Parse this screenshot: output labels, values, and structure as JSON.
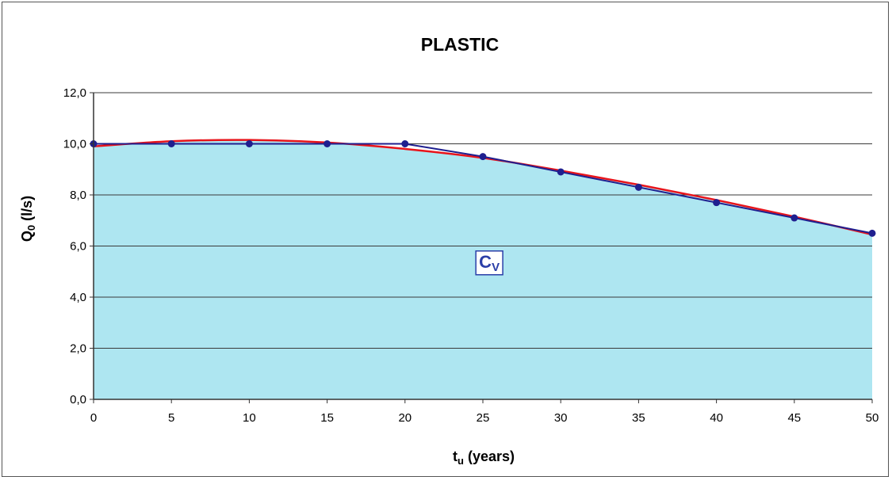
{
  "chart_data": {
    "type": "area",
    "title": "PLASTIC",
    "xlabel": {
      "main": "t",
      "sub": "u",
      "suffix": " (years)"
    },
    "ylabel": {
      "main": "Q",
      "sub": "0",
      "suffix": " (l/s)"
    },
    "xlim": [
      0,
      50
    ],
    "ylim": [
      0,
      12
    ],
    "xticks": [
      0,
      5,
      10,
      15,
      20,
      25,
      30,
      35,
      40,
      45,
      50
    ],
    "xtick_labels": [
      "0",
      "5",
      "10",
      "15",
      "20",
      "25",
      "30",
      "35",
      "40",
      "45",
      "50"
    ],
    "yticks": [
      0,
      2,
      4,
      6,
      8,
      10,
      12
    ],
    "ytick_labels": [
      "0,0",
      "2,0",
      "4,0",
      "6,0",
      "8,0",
      "10,0",
      "12,0"
    ],
    "grid": "horizontal",
    "annotation": {
      "main": "C",
      "sub": "V",
      "x": 24.5,
      "y": 5.0
    },
    "series": [
      {
        "kind": "line-markers",
        "color": "#1f1f8f",
        "x": [
          0,
          5,
          10,
          15,
          20,
          25,
          30,
          35,
          40,
          45,
          50
        ],
        "y": [
          10.0,
          10.0,
          10.0,
          10.0,
          10.0,
          9.5,
          8.9,
          8.3,
          7.7,
          7.1,
          6.5
        ]
      },
      {
        "kind": "trend-curve",
        "color": "#e8141b",
        "fill": "#aee6f1",
        "x": [
          0,
          5,
          10,
          15,
          20,
          25,
          30,
          35,
          40,
          45,
          50
        ],
        "y": [
          9.9,
          10.1,
          10.15,
          10.05,
          9.8,
          9.45,
          8.95,
          8.4,
          7.8,
          7.15,
          6.45
        ]
      }
    ]
  }
}
